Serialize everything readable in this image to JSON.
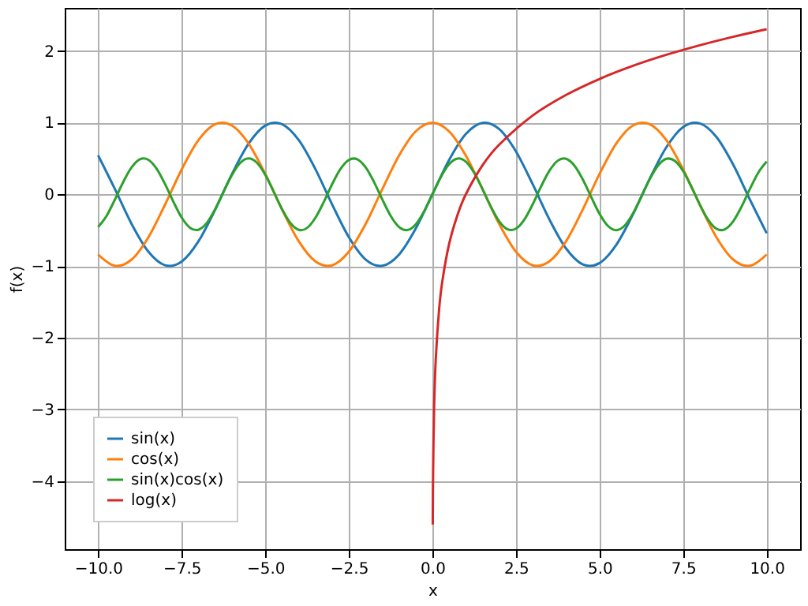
{
  "chart_data": {
    "type": "line",
    "xlabel": "x",
    "ylabel": "f(x)",
    "x": [
      -10,
      -9.5,
      -9,
      -8.5,
      -8,
      -7.5,
      -7,
      -6.5,
      -6,
      -5.5,
      -5,
      -4.5,
      -4,
      -3.5,
      -3,
      -2.5,
      -2,
      -1.5,
      -1,
      -0.5,
      0,
      0.5,
      1,
      1.5,
      2,
      2.5,
      3,
      3.5,
      4,
      4.5,
      5,
      5.5,
      6,
      6.5,
      7,
      7.5,
      8,
      8.5,
      9,
      9.5,
      10
    ],
    "series": [
      {
        "name": "sin(x)",
        "color": "#1f77b4",
        "values": [
          0.544,
          0.075,
          -0.412,
          -0.798,
          -0.989,
          -0.938,
          -0.657,
          -0.215,
          0.279,
          0.706,
          0.959,
          0.978,
          0.757,
          0.351,
          -0.141,
          -0.598,
          -0.909,
          -0.997,
          -0.841,
          -0.479,
          0,
          0.479,
          0.841,
          0.997,
          0.909,
          0.598,
          0.141,
          -0.351,
          -0.757,
          -0.978,
          -0.959,
          -0.706,
          -0.279,
          0.215,
          0.657,
          0.938,
          0.989,
          0.798,
          0.412,
          -0.075,
          -0.544
        ]
      },
      {
        "name": "cos(x)",
        "color": "#ff7f0e",
        "values": [
          -0.839,
          -0.997,
          -0.911,
          -0.602,
          -0.146,
          0.347,
          0.754,
          0.977,
          0.96,
          0.709,
          0.284,
          -0.211,
          -0.654,
          -0.936,
          -0.99,
          -0.801,
          -0.416,
          0.071,
          0.54,
          0.878,
          1,
          0.878,
          0.54,
          0.071,
          -0.416,
          -0.801,
          -0.99,
          -0.936,
          -0.654,
          -0.211,
          0.284,
          0.709,
          0.96,
          0.977,
          0.754,
          0.347,
          -0.146,
          -0.602,
          -0.911,
          -0.997,
          -0.839
        ]
      },
      {
        "name": "sin(x)cos(x)",
        "color": "#2ca02c",
        "x": [
          -10,
          -9.75,
          -9.5,
          -9.25,
          -9,
          -8.75,
          -8.5,
          -8.25,
          -8,
          -7.75,
          -7.5,
          -7.25,
          -7,
          -6.75,
          -6.5,
          -6.25,
          -6,
          -5.75,
          -5.5,
          -5.25,
          -5,
          -4.75,
          -4.5,
          -4.25,
          -4,
          -3.75,
          -3.5,
          -3.25,
          -3,
          -2.75,
          -2.5,
          -2.25,
          -2,
          -1.75,
          -1.5,
          -1.25,
          -1,
          -0.75,
          -0.5,
          -0.25,
          0,
          0.25,
          0.5,
          0.75,
          1,
          1.25,
          1.5,
          1.75,
          2,
          2.25,
          2.5,
          2.75,
          3,
          3.25,
          3.5,
          3.75,
          4,
          4.25,
          4.5,
          4.75,
          5,
          5.25,
          5.5,
          5.75,
          6,
          6.25,
          6.5,
          6.75,
          7,
          7.25,
          7.5,
          7.75,
          8,
          8.25,
          8.5,
          8.75,
          9,
          9.25,
          9.5,
          9.75,
          10
        ],
        "values": [
          -0.456,
          -0.303,
          -0.075,
          0.171,
          0.375,
          0.488,
          0.481,
          0.356,
          0.144,
          -0.103,
          -0.325,
          -0.467,
          -0.495,
          -0.401,
          -0.21,
          0.033,
          0.268,
          0.438,
          0.5,
          0.44,
          0.272,
          0.038,
          -0.206,
          -0.399,
          -0.495,
          -0.469,
          -0.328,
          -0.108,
          0.14,
          0.353,
          0.479,
          0.489,
          0.378,
          0.175,
          -0.071,
          -0.299,
          -0.455,
          -0.499,
          -0.421,
          -0.24,
          0,
          0.24,
          0.421,
          0.499,
          0.455,
          0.299,
          0.071,
          -0.175,
          -0.378,
          -0.489,
          -0.479,
          -0.353,
          -0.14,
          0.108,
          0.328,
          0.469,
          0.495,
          0.399,
          0.206,
          -0.038,
          -0.272,
          -0.44,
          -0.5,
          -0.438,
          -0.268,
          -0.033,
          0.21,
          0.401,
          0.495,
          0.467,
          0.325,
          0.103,
          -0.144,
          -0.356,
          -0.481,
          -0.488,
          -0.375,
          -0.171,
          0.075,
          0.303,
          0.456
        ]
      },
      {
        "name": "log(x)",
        "color": "#d62728",
        "x": [
          0.01,
          0.02,
          0.05,
          0.1,
          0.2,
          0.3,
          0.5,
          0.75,
          1,
          1.5,
          2,
          3,
          4,
          5,
          6,
          7,
          8,
          9,
          10
        ],
        "values": [
          -4.605,
          -3.912,
          -2.996,
          -2.303,
          -1.609,
          -1.204,
          -0.693,
          -0.288,
          0,
          0.405,
          0.693,
          1.099,
          1.386,
          1.609,
          1.792,
          1.946,
          2.079,
          2.197,
          2.303
        ]
      }
    ],
    "xlim": [
      -11,
      11
    ],
    "ylim": [
      -4.95,
      2.6
    ],
    "xticks": [
      {
        "value": -10,
        "label": "−10.0"
      },
      {
        "value": -7.5,
        "label": "−7.5"
      },
      {
        "value": -5,
        "label": "−5.0"
      },
      {
        "value": -2.5,
        "label": "−2.5"
      },
      {
        "value": 0,
        "label": "0.0"
      },
      {
        "value": 2.5,
        "label": "2.5"
      },
      {
        "value": 5,
        "label": "5.0"
      },
      {
        "value": 7.5,
        "label": "7.5"
      },
      {
        "value": 10,
        "label": "10.0"
      }
    ],
    "yticks": [
      {
        "value": -4,
        "label": "−4"
      },
      {
        "value": -3,
        "label": "−3"
      },
      {
        "value": -2,
        "label": "−2"
      },
      {
        "value": -1,
        "label": "−1"
      },
      0,
      1,
      2
    ],
    "grid": true,
    "legend": "bottom left",
    "marker": "none",
    "line_style": "solid"
  }
}
